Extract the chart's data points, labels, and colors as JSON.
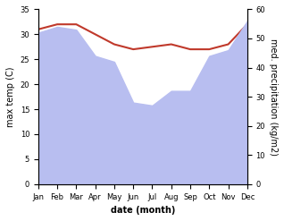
{
  "months": [
    "Jan",
    "Feb",
    "Mar",
    "Apr",
    "May",
    "Jun",
    "Jul",
    "Aug",
    "Sep",
    "Oct",
    "Nov",
    "Dec"
  ],
  "max_temp": [
    31.0,
    32.0,
    32.0,
    30.0,
    28.0,
    27.0,
    27.5,
    28.0,
    27.0,
    27.0,
    28.0,
    32.0
  ],
  "precipitation": [
    52.0,
    54.0,
    53.0,
    44.0,
    42.0,
    28.0,
    27.0,
    32.0,
    32.0,
    44.0,
    46.0,
    56.0
  ],
  "temp_color": "#c0392b",
  "area_fill_color": "#b8bef0",
  "left_ylim": [
    0,
    35
  ],
  "right_ylim": [
    0,
    60
  ],
  "left_yticks": [
    0,
    5,
    10,
    15,
    20,
    25,
    30,
    35
  ],
  "right_yticks": [
    0,
    10,
    20,
    30,
    40,
    50,
    60
  ],
  "xlabel": "date (month)",
  "ylabel_left": "max temp (C)",
  "ylabel_right": "med. precipitation (kg/m2)"
}
